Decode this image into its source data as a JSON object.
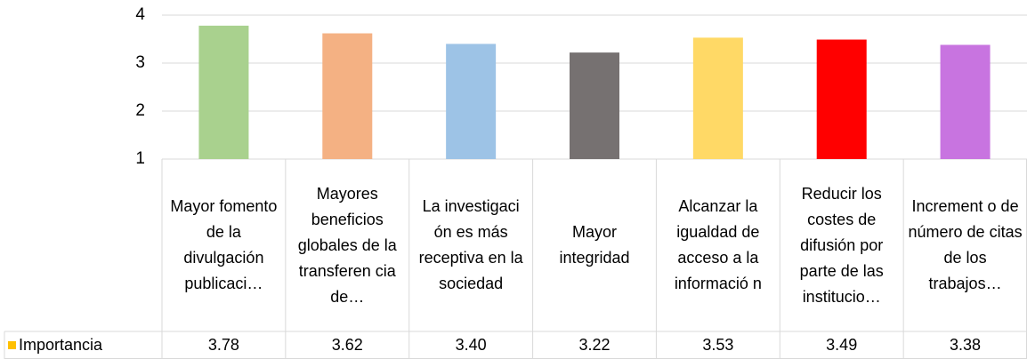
{
  "chart_data": {
    "type": "bar",
    "categories": [
      "Mayor fomento de la divulgación publicaci…",
      "Mayores beneficios globales de la transferen cia de…",
      "La investigaci ón es más receptiva en la sociedad",
      "Mayor integridad",
      "Alcanzar la igualdad de acceso a la informació n",
      "Reducir los costes de difusión por parte de las institucio…",
      "Increment o de número de citas de los trabajos…"
    ],
    "series": [
      {
        "name": "Importancia",
        "color": "#ffc000",
        "values": [
          3.78,
          3.62,
          3.4,
          3.22,
          3.53,
          3.49,
          3.38
        ],
        "value_labels": [
          "3.78",
          "3.62",
          "3.40",
          "3.22",
          "3.53",
          "3.49",
          "3.38"
        ]
      }
    ],
    "colors": [
      "#a9d18e",
      "#f4b183",
      "#9dc3e6",
      "#767171",
      "#ffd966",
      "#ff0000",
      "#c874e0"
    ],
    "ylim": [
      1,
      4
    ],
    "yticks": [
      1,
      2,
      3,
      4
    ],
    "grid": true
  }
}
